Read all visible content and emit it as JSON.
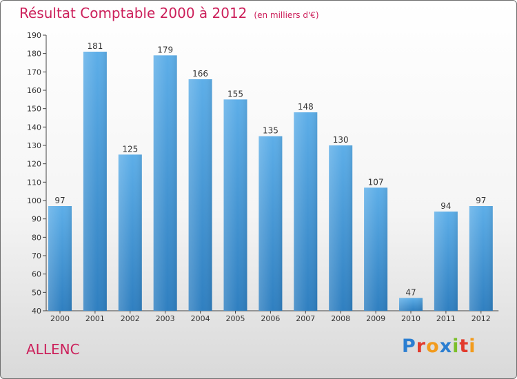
{
  "header": {
    "title": "Résultat Comptable 2000 à 2012",
    "subtitle": "(en milliers d'€)"
  },
  "footer": {
    "place": "ALLENC",
    "logo_text": "Proxiti"
  },
  "colors": {
    "title": "#cc1f5a",
    "bar_light": "#5daee8",
    "bar_dark": "#2f7fc0"
  },
  "chart_data": {
    "type": "bar",
    "title": "Résultat Comptable 2000 à 2012",
    "subtitle": "(en milliers d'€)",
    "xlabel": "",
    "ylabel": "",
    "categories": [
      "2000",
      "2001",
      "2002",
      "2003",
      "2004",
      "2005",
      "2006",
      "2007",
      "2008",
      "2009",
      "2010",
      "2011",
      "2012"
    ],
    "values": [
      97,
      181,
      125,
      179,
      166,
      155,
      135,
      148,
      130,
      107,
      47,
      94,
      97
    ],
    "ylim": [
      40,
      190
    ],
    "yticks": [
      40,
      50,
      60,
      70,
      80,
      90,
      100,
      110,
      120,
      130,
      140,
      150,
      160,
      170,
      180,
      190
    ],
    "grid": false,
    "legend": "none"
  }
}
